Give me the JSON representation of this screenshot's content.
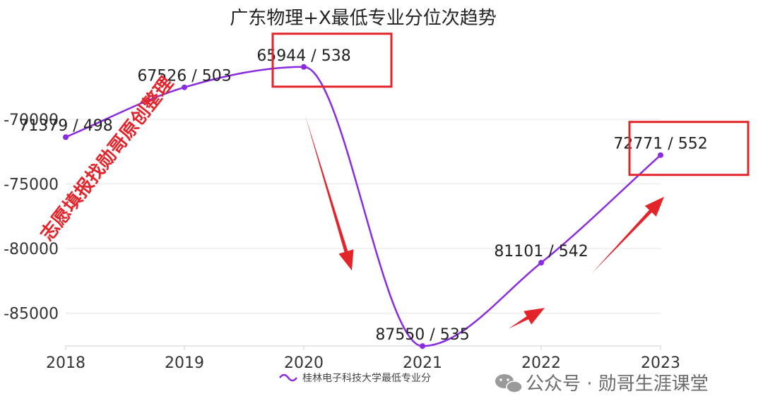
{
  "chart_data": {
    "type": "line",
    "title": "广东物理+X最低专业分位次趋势",
    "categories": [
      "2018",
      "2019",
      "2020",
      "2021",
      "2022",
      "2023"
    ],
    "series": [
      {
        "name": "桂林电子科技大学最低专业分",
        "values": [
          -71379,
          -67526,
          -65944,
          -87550,
          -81101,
          -72771
        ],
        "labels": [
          "71379 / 498",
          "67526 / 503",
          "65944 / 538",
          "87550 / 535",
          "81101 / 542",
          "72771 / 552"
        ],
        "color": "#8a2be2"
      }
    ],
    "y_ticks": [
      "-70000",
      "-75000",
      "-80000",
      "-85000"
    ],
    "y_tick_values": [
      -70000,
      -75000,
      -80000,
      -85000
    ],
    "ylim": [
      -87550,
      -65000
    ],
    "grid": true,
    "legend_position": "bottom-center",
    "highlighted_points": [
      "2020",
      "2023"
    ],
    "highlight_color": "#e3242b"
  },
  "watermarks": {
    "side": "志愿填报找勋哥原创整理",
    "bottom_right": "公众号 · 勋哥生涯课堂"
  }
}
